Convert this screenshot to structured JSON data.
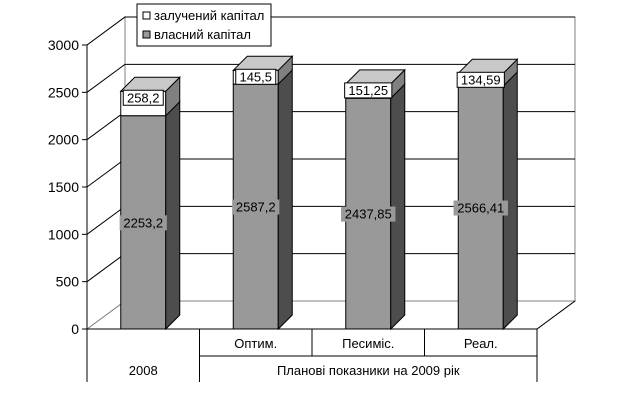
{
  "chart_data": {
    "type": "bar",
    "stacked": true,
    "three_d": true,
    "categories": [
      "2008",
      "Оптим.",
      "Песиміс.",
      "Реал."
    ],
    "group_labels": [
      "2008",
      "Планові показники на 2009 рік"
    ],
    "series": [
      {
        "name": "власний капітал",
        "values": [
          2253.2,
          2587.2,
          2437.85,
          2566.41
        ],
        "value_labels": [
          "2253,2",
          "2587,2",
          "2437,85",
          "2566,41"
        ],
        "color": "#999999"
      },
      {
        "name": "залучений капітал",
        "values": [
          258.2,
          145.5,
          151.25,
          134.59
        ],
        "value_labels": [
          "258,2",
          "145,5",
          "151,25",
          "134,59"
        ],
        "color": "#ffffff"
      }
    ],
    "yticks": [
      "0",
      "500",
      "1000",
      "1500",
      "2000",
      "2500",
      "3000"
    ],
    "ylim": [
      0,
      3000
    ],
    "grid": true,
    "legend_position": "top-left"
  }
}
